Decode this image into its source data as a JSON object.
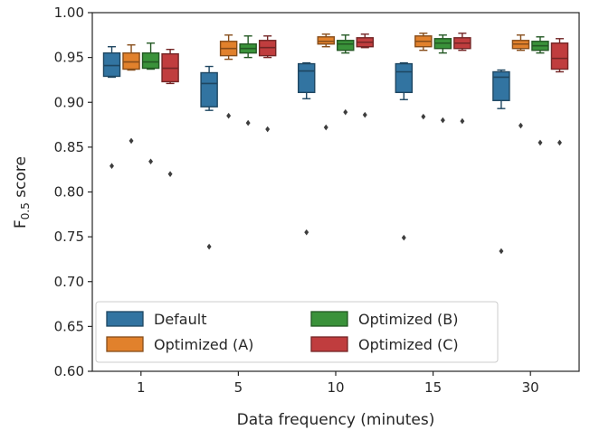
{
  "chart_data": {
    "type": "box",
    "xlabel": "Data frequency (minutes)",
    "ylabel": "F",
    "ylabel_sub": "0.5",
    "ylabel_suffix": " score",
    "ylim": [
      0.6,
      1.0
    ],
    "yticks": [
      "0.60",
      "0.65",
      "0.70",
      "0.75",
      "0.80",
      "0.85",
      "0.90",
      "0.95",
      "1.00"
    ],
    "categories": [
      "1",
      "5",
      "10",
      "15",
      "30"
    ],
    "grid": false,
    "legend_position": "lower-left",
    "series": [
      {
        "name": "Default",
        "color": "#3274a1",
        "boxes": [
          {
            "whislo": 0.928,
            "q1": 0.929,
            "med": 0.941,
            "q3": 0.955,
            "whishi": 0.962,
            "fliers": [
              0.829
            ]
          },
          {
            "whislo": 0.891,
            "q1": 0.895,
            "med": 0.921,
            "q3": 0.933,
            "whishi": 0.94,
            "fliers": [
              0.739
            ]
          },
          {
            "whislo": 0.904,
            "q1": 0.911,
            "med": 0.935,
            "q3": 0.943,
            "whishi": 0.944,
            "fliers": [
              0.755
            ]
          },
          {
            "whislo": 0.903,
            "q1": 0.911,
            "med": 0.934,
            "q3": 0.943,
            "whishi": 0.944,
            "fliers": [
              0.749
            ]
          },
          {
            "whislo": 0.893,
            "q1": 0.902,
            "med": 0.928,
            "q3": 0.934,
            "whishi": 0.936,
            "fliers": [
              0.734
            ]
          }
        ]
      },
      {
        "name": "Optimized (A)",
        "color": "#e1812c",
        "boxes": [
          {
            "whislo": 0.936,
            "q1": 0.937,
            "med": 0.945,
            "q3": 0.955,
            "whishi": 0.964,
            "fliers": [
              0.857
            ]
          },
          {
            "whislo": 0.948,
            "q1": 0.952,
            "med": 0.96,
            "q3": 0.968,
            "whishi": 0.975,
            "fliers": [
              0.885
            ]
          },
          {
            "whislo": 0.962,
            "q1": 0.965,
            "med": 0.968,
            "q3": 0.973,
            "whishi": 0.976,
            "fliers": [
              0.872
            ]
          },
          {
            "whislo": 0.958,
            "q1": 0.962,
            "med": 0.968,
            "q3": 0.974,
            "whishi": 0.977,
            "fliers": [
              0.884
            ]
          },
          {
            "whislo": 0.958,
            "q1": 0.96,
            "med": 0.965,
            "q3": 0.969,
            "whishi": 0.975,
            "fliers": [
              0.874
            ]
          }
        ]
      },
      {
        "name": "Optimized (B)",
        "color": "#3a923a",
        "boxes": [
          {
            "whislo": 0.937,
            "q1": 0.938,
            "med": 0.945,
            "q3": 0.955,
            "whishi": 0.966,
            "fliers": [
              0.834
            ]
          },
          {
            "whislo": 0.95,
            "q1": 0.955,
            "med": 0.96,
            "q3": 0.965,
            "whishi": 0.974,
            "fliers": [
              0.877
            ]
          },
          {
            "whislo": 0.955,
            "q1": 0.958,
            "med": 0.965,
            "q3": 0.969,
            "whishi": 0.975,
            "fliers": [
              0.889
            ]
          },
          {
            "whislo": 0.955,
            "q1": 0.96,
            "med": 0.966,
            "q3": 0.971,
            "whishi": 0.975,
            "fliers": [
              0.88
            ]
          },
          {
            "whislo": 0.955,
            "q1": 0.958,
            "med": 0.963,
            "q3": 0.968,
            "whishi": 0.973,
            "fliers": [
              0.855
            ]
          }
        ]
      },
      {
        "name": "Optimized (C)",
        "color": "#c03d3e",
        "boxes": [
          {
            "whislo": 0.921,
            "q1": 0.923,
            "med": 0.938,
            "q3": 0.954,
            "whishi": 0.959,
            "fliers": [
              0.82
            ]
          },
          {
            "whislo": 0.95,
            "q1": 0.952,
            "med": 0.961,
            "q3": 0.969,
            "whishi": 0.974,
            "fliers": [
              0.87
            ]
          },
          {
            "whislo": 0.961,
            "q1": 0.962,
            "med": 0.967,
            "q3": 0.972,
            "whishi": 0.976,
            "fliers": [
              0.886
            ]
          },
          {
            "whislo": 0.958,
            "q1": 0.96,
            "med": 0.966,
            "q3": 0.972,
            "whishi": 0.977,
            "fliers": [
              0.879
            ]
          },
          {
            "whislo": 0.934,
            "q1": 0.937,
            "med": 0.949,
            "q3": 0.966,
            "whishi": 0.971,
            "fliers": [
              0.855
            ]
          }
        ]
      }
    ]
  }
}
